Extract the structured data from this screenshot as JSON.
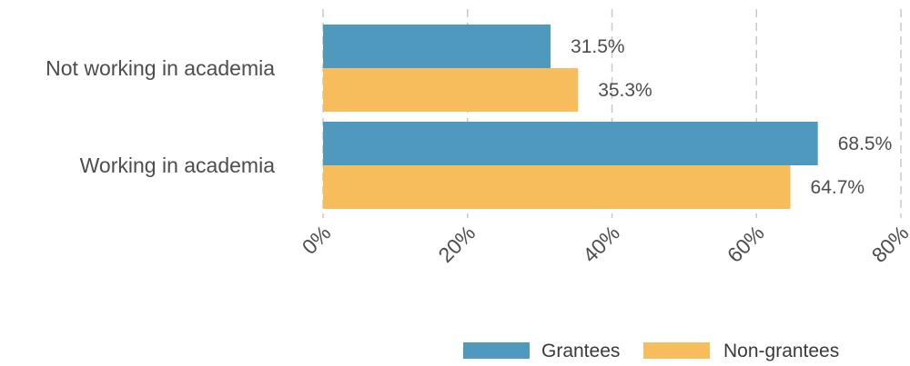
{
  "chart_data": {
    "type": "bar",
    "orientation": "horizontal",
    "categories": [
      "Not working in academia",
      "Working in academia"
    ],
    "series": [
      {
        "name": "Grantees",
        "values": [
          31.5,
          68.5
        ],
        "labels": [
          "31.5%",
          "68.5%"
        ],
        "color": "#4f98be"
      },
      {
        "name": "Non-grantees",
        "values": [
          35.3,
          64.7
        ],
        "labels": [
          "35.3%",
          "64.7%"
        ],
        "color": "#f7bc5c"
      }
    ],
    "xlim": [
      0,
      80
    ],
    "xticks": [
      0,
      20,
      40,
      60,
      80
    ],
    "xtick_labels": [
      "0%",
      "20%",
      "40%",
      "60%",
      "80%"
    ],
    "title": "",
    "xlabel": "",
    "ylabel": "",
    "grid": "vertical dashed",
    "legend_position": "bottom-right"
  }
}
